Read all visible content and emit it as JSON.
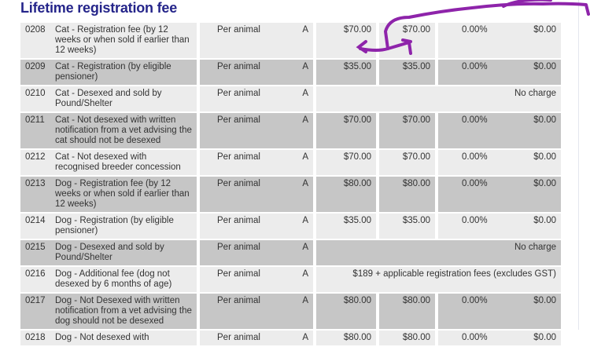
{
  "title": "Lifetime registration fee",
  "rows": [
    {
      "code": "0208",
      "desc": "Cat - Registration fee (by 12 weeks or when sold if earlier than 12 weeks)",
      "unit": "Per animal",
      "flag": "A",
      "fee1": "$70.00",
      "fee2": "$70.00",
      "pct": "0.00%",
      "gst": "$0.00"
    },
    {
      "code": "0209",
      "desc": "Cat - Registration (by eligible pensioner)",
      "unit": "Per animal",
      "flag": "A",
      "fee1": "$35.00",
      "fee2": "$35.00",
      "pct": "0.00%",
      "gst": "$0.00"
    },
    {
      "code": "0210",
      "desc": "Cat - Desexed and sold by Pound/Shelter",
      "unit": "Per animal",
      "flag": "A",
      "note": "No charge"
    },
    {
      "code": "0211",
      "desc": "Cat - Not desexed with written notification from a vet advising the cat should not be desexed",
      "unit": "Per animal",
      "flag": "A",
      "fee1": "$70.00",
      "fee2": "$70.00",
      "pct": "0.00%",
      "gst": "$0.00"
    },
    {
      "code": "0212",
      "desc": "Cat - Not desexed with recognised breeder concession",
      "unit": "Per animal",
      "flag": "A",
      "fee1": "$70.00",
      "fee2": "$70.00",
      "pct": "0.00%",
      "gst": "$0.00"
    },
    {
      "code": "0213",
      "desc": "Dog - Registration fee (by 12 weeks or when sold if earlier than 12 weeks)",
      "unit": "Per animal",
      "flag": "A",
      "fee1": "$80.00",
      "fee2": "$80.00",
      "pct": "0.00%",
      "gst": "$0.00"
    },
    {
      "code": "0214",
      "desc": "Dog - Registration (by eligible pensioner)",
      "unit": "Per animal",
      "flag": "A",
      "fee1": "$35.00",
      "fee2": "$35.00",
      "pct": "0.00%",
      "gst": "$0.00"
    },
    {
      "code": "0215",
      "desc": "Dog - Desexed and sold by Pound/Shelter",
      "unit": "Per animal",
      "flag": "A",
      "note": "No charge"
    },
    {
      "code": "0216",
      "desc": "Dog - Additional fee (dog not desexed by 6 months of age)",
      "unit": "Per animal",
      "flag": "A",
      "note": "$189 + applicable registration fees (excludes GST)"
    },
    {
      "code": "0217",
      "desc": "Dog - Not Desexed with written notification from a vet advising the dog should not be desexed",
      "unit": "Per animal",
      "flag": "A",
      "fee1": "$80.00",
      "fee2": "$80.00",
      "pct": "0.00%",
      "gst": "$0.00"
    },
    {
      "code": "0218",
      "desc": "Dog - Not desexed with",
      "unit": "Per animal",
      "flag": "A",
      "fee1": "$80.00",
      "fee2": "$80.00",
      "pct": "0.00%",
      "gst": "$0.00"
    }
  ],
  "annotation_color": "#8e24aa"
}
